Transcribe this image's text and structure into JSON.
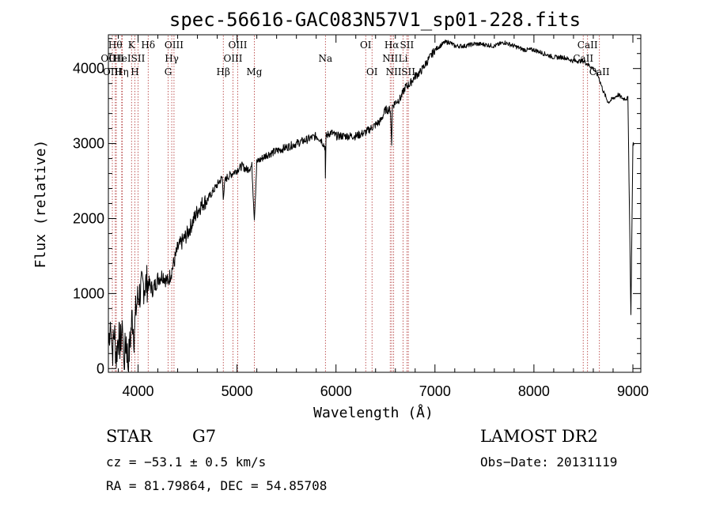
{
  "chart_data": {
    "type": "line",
    "title": "spec-56616-GAC083N57V1_sp01-228.fits",
    "xlabel": "Wavelength (Å)",
    "ylabel": "Flux (relative)",
    "xlim": [
      3700,
      9080
    ],
    "ylim": [
      -50,
      4450
    ],
    "xticks": [
      4000,
      5000,
      6000,
      7000,
      8000,
      9000
    ],
    "yticks": [
      0,
      1000,
      2000,
      3000,
      4000
    ],
    "grid": false,
    "series": [
      {
        "x": [
          3700,
          3720,
          3740,
          3760,
          3780,
          3800,
          3820,
          3840,
          3860,
          3880,
          3900,
          3920,
          3940,
          3960,
          3980,
          4000,
          4050,
          4100,
          4150,
          4200,
          4250,
          4300,
          4350,
          4400,
          4450,
          4500,
          4550,
          4600,
          4650,
          4700,
          4750,
          4800,
          4850,
          4861,
          4880,
          4900,
          4950,
          5000,
          5050,
          5100,
          5150,
          5175,
          5200,
          5250,
          5300,
          5400,
          5500,
          5600,
          5700,
          5800,
          5850,
          5890,
          5893,
          5900,
          5950,
          6000,
          6100,
          6200,
          6300,
          6350,
          6400,
          6450,
          6500,
          6550,
          6563,
          6570,
          6600,
          6650,
          6700,
          6750,
          6800,
          6850,
          6900,
          6950,
          7000,
          7050,
          7100,
          7150,
          7200,
          7300,
          7400,
          7500,
          7600,
          7700,
          7800,
          7900,
          8000,
          8100,
          8200,
          8300,
          8400,
          8500,
          8550,
          8600,
          8650,
          8700,
          8750,
          8800,
          8850,
          8900,
          8950,
          8980,
          9000,
          9010
        ],
        "y": [
          300,
          650,
          200,
          500,
          150,
          450,
          300,
          550,
          100,
          400,
          50,
          350,
          700,
          450,
          800,
          950,
          1100,
          1150,
          1050,
          1200,
          1250,
          1150,
          1350,
          1600,
          1700,
          1800,
          1950,
          2100,
          2200,
          2250,
          2350,
          2450,
          2550,
          2300,
          2500,
          2550,
          2600,
          2650,
          2700,
          2650,
          2700,
          2000,
          2750,
          2800,
          2850,
          2900,
          2950,
          3000,
          3050,
          3100,
          3050,
          2950,
          2500,
          3100,
          3150,
          3100,
          3100,
          3100,
          3150,
          3200,
          3250,
          3300,
          3450,
          3450,
          3000,
          3500,
          3550,
          3600,
          3750,
          3800,
          3900,
          3950,
          4050,
          4150,
          4250,
          4300,
          4350,
          4350,
          4300,
          4300,
          4330,
          4320,
          4300,
          4350,
          4300,
          4250,
          4250,
          4200,
          4150,
          4150,
          4100,
          4100,
          4050,
          4000,
          3900,
          3700,
          3550,
          3600,
          3650,
          3600,
          3600,
          700,
          3000,
          3000
        ]
      }
    ],
    "line_labels": [
      {
        "x": 3700,
        "text": "OII",
        "row": 2
      },
      {
        "x": 3740,
        "text": "OIII",
        "row": 3
      },
      {
        "x": 3770,
        "text": "Hθ",
        "row": 1
      },
      {
        "x": 3780,
        "text": "OII",
        "row": 2
      },
      {
        "x": 3835,
        "text": "Hη",
        "row": 3
      },
      {
        "x": 3840,
        "text": "HeI",
        "row": 2
      },
      {
        "x": 3934,
        "text": "K",
        "row": 1
      },
      {
        "x": 3968,
        "text": "H",
        "row": 3
      },
      {
        "x": 4000,
        "text": "SII",
        "row": 2
      },
      {
        "x": 4102,
        "text": "Hδ",
        "row": 1
      },
      {
        "x": 4304,
        "text": "G",
        "row": 3
      },
      {
        "x": 4340,
        "text": "Hγ",
        "row": 2
      },
      {
        "x": 4363,
        "text": "OIII",
        "row": 1
      },
      {
        "x": 4861,
        "text": "Hβ",
        "row": 3
      },
      {
        "x": 4959,
        "text": "OIII",
        "row": 2
      },
      {
        "x": 5007,
        "text": "OIII",
        "row": 1
      },
      {
        "x": 5175,
        "text": "Mg",
        "row": 3
      },
      {
        "x": 5893,
        "text": "Na",
        "row": 2
      },
      {
        "x": 6300,
        "text": "OI",
        "row": 1
      },
      {
        "x": 6364,
        "text": "OI",
        "row": 3
      },
      {
        "x": 6548,
        "text": "NII",
        "row": 2
      },
      {
        "x": 6563,
        "text": "Hα",
        "row": 1
      },
      {
        "x": 6583,
        "text": "NII",
        "row": 3
      },
      {
        "x": 6678,
        "text": "Li",
        "row": 2
      },
      {
        "x": 6717,
        "text": "SII",
        "row": 1
      },
      {
        "x": 6731,
        "text": "SII",
        "row": 3
      },
      {
        "x": 8498,
        "text": "CaII",
        "row": 2
      },
      {
        "x": 8542,
        "text": "CaII",
        "row": 1
      },
      {
        "x": 8662,
        "text": "CaII",
        "row": 3
      }
    ]
  },
  "info": {
    "object_class": "STAR",
    "subclass": "G7",
    "redshift": "cz = −53.1 ± 0.5 km/s",
    "coords": "RA =  81.79864, DEC =  54.85708",
    "survey": "LAMOST DR2",
    "obs_date": "Obs−Date: 20131119"
  }
}
